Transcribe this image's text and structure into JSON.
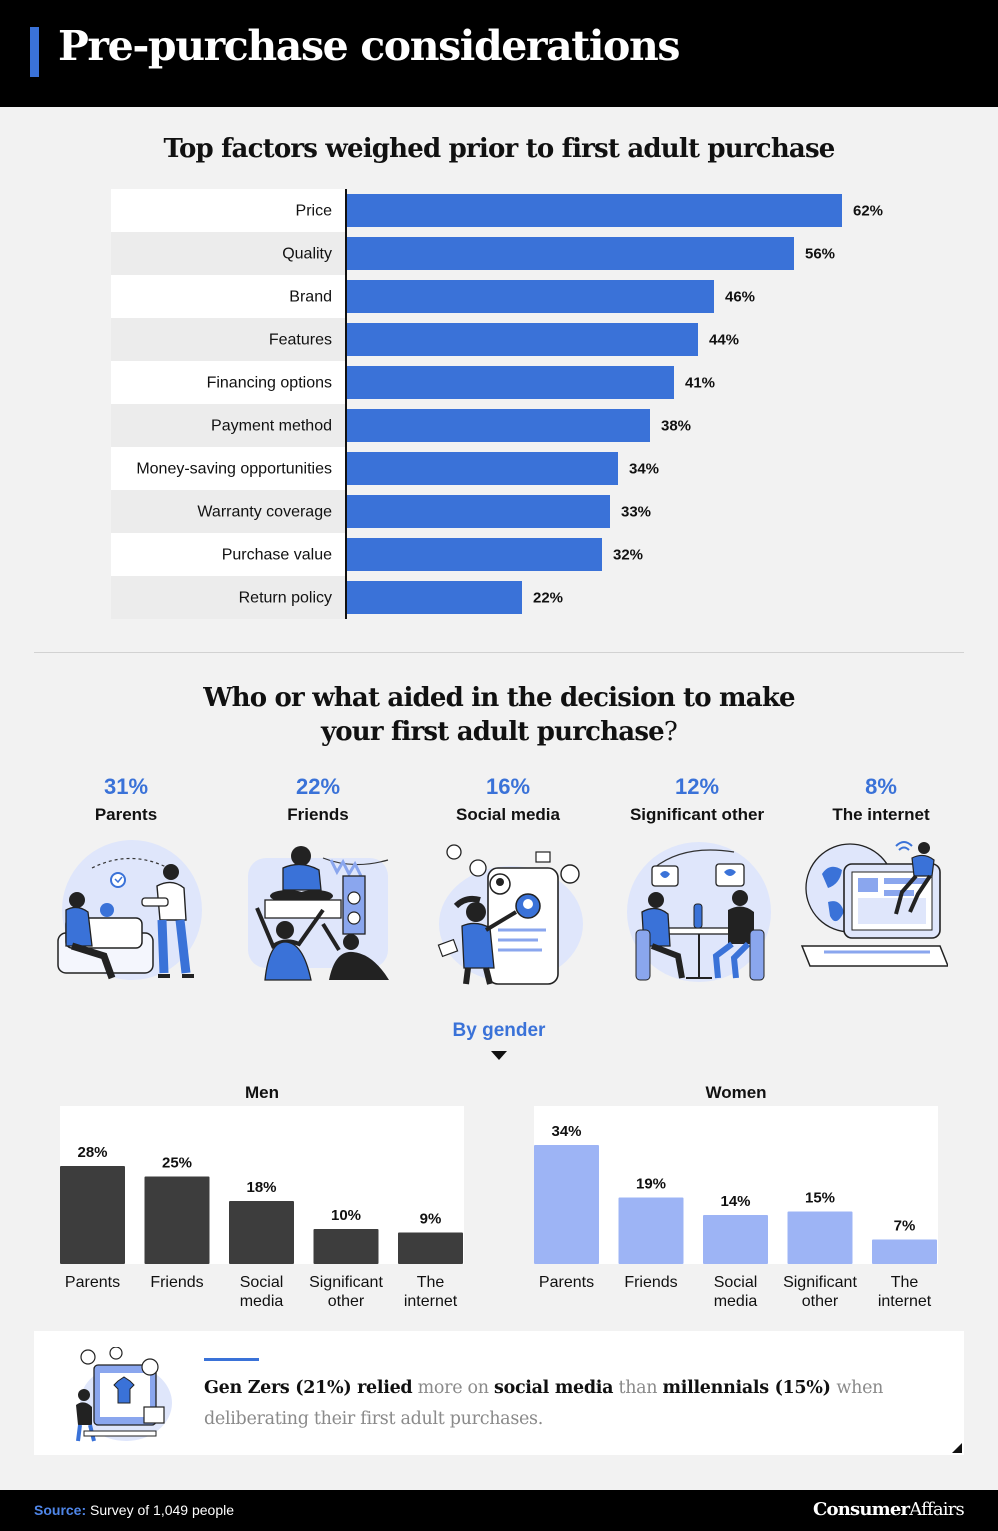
{
  "header": {
    "title": "Pre-purchase considerations"
  },
  "factors": {
    "title": "Top factors weighed prior to first adult purchase"
  },
  "chart_data": [
    {
      "type": "bar",
      "orientation": "horizontal",
      "title": "Top factors weighed prior to first adult purchase",
      "categories": [
        "Price",
        "Quality",
        "Brand",
        "Features",
        "Financing options",
        "Payment method",
        "Money-saving opportunities",
        "Warranty coverage",
        "Purchase value",
        "Return policy"
      ],
      "values": [
        62,
        56,
        46,
        44,
        41,
        38,
        34,
        33,
        32,
        22
      ],
      "value_labels": [
        "62%",
        "56%",
        "46%",
        "44%",
        "41%",
        "38%",
        "34%",
        "33%",
        "32%",
        "22%"
      ],
      "unit": "%",
      "color": "#3a72d8"
    },
    {
      "type": "bar",
      "title": "Men",
      "categories": [
        "Parents",
        "Friends",
        "Social media",
        "Significant other",
        "The internet"
      ],
      "values": [
        28,
        25,
        18,
        10,
        9
      ],
      "value_labels": [
        "28%",
        "25%",
        "18%",
        "10%",
        "9%"
      ],
      "unit": "%",
      "color": "#3d3d3d"
    },
    {
      "type": "bar",
      "title": "Women",
      "categories": [
        "Parents",
        "Friends",
        "Social media",
        "Significant other",
        "The internet"
      ],
      "values": [
        34,
        19,
        14,
        15,
        7
      ],
      "value_labels": [
        "34%",
        "19%",
        "14%",
        "15%",
        "7%"
      ],
      "unit": "%",
      "color": "#9db4f5"
    }
  ],
  "aided": {
    "title_line1": "Who or what aided in the decision to make",
    "title_line2": "your first adult purchase",
    "title_q": "?",
    "items": [
      {
        "pct": "31%",
        "label": "Parents"
      },
      {
        "pct": "22%",
        "label": "Friends"
      },
      {
        "pct": "16%",
        "label": "Social media"
      },
      {
        "pct": "12%",
        "label": "Significant other"
      },
      {
        "pct": "8%",
        "label": "The internet"
      }
    ]
  },
  "by_gender": {
    "label": "By gender",
    "men_title": "Men",
    "women_title": "Women"
  },
  "callout": {
    "t1": "Gen Zers",
    "t2": " (21%) ",
    "t3": "relied",
    "t4": " more on ",
    "t5": "social media",
    "t6": " than ",
    "t7": "millennials",
    "t8": " (15%) ",
    "t9": "when deliberating their first adult purchases."
  },
  "footer": {
    "source_label": "Source:",
    "source_text": " Survey of 1,049 people",
    "brand_a": "Consumer",
    "brand_b": "Affairs"
  },
  "colors": {
    "accent": "#3a72d8",
    "men": "#3d3d3d",
    "women": "#9db4f5",
    "header_bg": "#000000"
  }
}
